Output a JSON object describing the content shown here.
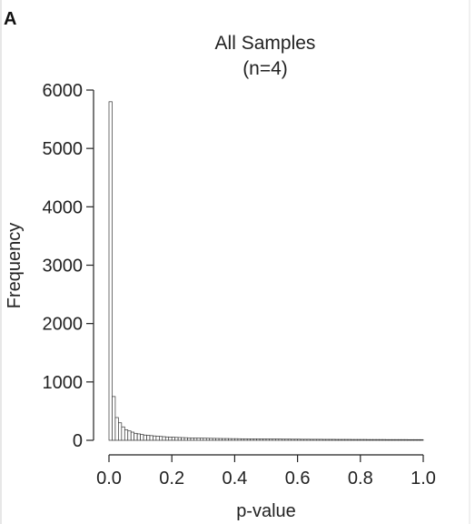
{
  "panel_label": "A",
  "chart_data": {
    "type": "bar",
    "title": "All Samples",
    "subtitle": "(n=4)",
    "xlabel": "p-value",
    "ylabel": "Frequency",
    "xlim": [
      0,
      1
    ],
    "ylim": [
      0,
      6000
    ],
    "x_ticks": [
      "0.0",
      "0.2",
      "0.4",
      "0.6",
      "0.8",
      "1.0"
    ],
    "y_ticks": [
      "0",
      "1000",
      "2000",
      "3000",
      "4000",
      "5000",
      "6000"
    ],
    "grid": false,
    "bin_width": 0.01,
    "values": [
      5800,
      750,
      390,
      300,
      230,
      180,
      160,
      140,
      120,
      110,
      100,
      90,
      85,
      80,
      75,
      70,
      66,
      62,
      58,
      55,
      52,
      50,
      48,
      46,
      44,
      42,
      40,
      39,
      38,
      37,
      36,
      35,
      34,
      33,
      32,
      31,
      30,
      30,
      29,
      28,
      28,
      27,
      26,
      26,
      25,
      25,
      24,
      24,
      23,
      23,
      22,
      22,
      22,
      21,
      21,
      20,
      20,
      20,
      19,
      19,
      19,
      18,
      18,
      18,
      17,
      17,
      17,
      17,
      16,
      16,
      16,
      16,
      15,
      15,
      15,
      15,
      15,
      14,
      14,
      14,
      14,
      14,
      13,
      13,
      13,
      13,
      13,
      13,
      12,
      12,
      12,
      12,
      12,
      12,
      12,
      11,
      11,
      11,
      11,
      11
    ]
  }
}
